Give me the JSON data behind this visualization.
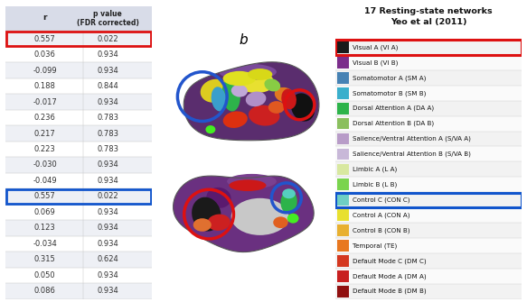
{
  "title_b": "b",
  "legend_title": "17 Resting-state networks\nYeo et al (2011)",
  "table_headers": [
    "r",
    "p value\n(FDR corrected)"
  ],
  "table_rows": [
    [
      "0.557",
      "0.022"
    ],
    [
      "0.036",
      "0.934"
    ],
    [
      "-0.099",
      "0.934"
    ],
    [
      "0.188",
      "0.844"
    ],
    [
      "-0.017",
      "0.934"
    ],
    [
      "0.236",
      "0.783"
    ],
    [
      "0.217",
      "0.783"
    ],
    [
      "0.223",
      "0.783"
    ],
    [
      "-0.030",
      "0.934"
    ],
    [
      "-0.049",
      "0.934"
    ],
    [
      "0.557",
      "0.022"
    ],
    [
      "0.069",
      "0.934"
    ],
    [
      "0.123",
      "0.934"
    ],
    [
      "-0.034",
      "0.934"
    ],
    [
      "0.315",
      "0.624"
    ],
    [
      "0.050",
      "0.934"
    ],
    [
      "0.086",
      "0.934"
    ]
  ],
  "highlight_red_row": 0,
  "highlight_blue_row": 10,
  "network_labels": [
    "Visual A (VI A)",
    "Visual B (VI B)",
    "Somatomotor A (SM A)",
    "Somatomotor B (SM B)",
    "Dorsal Attention A (DA A)",
    "Dorsal Attention B (DA B)",
    "Salience/Ventral Attention A (S/VA A)",
    "Salience/Ventral Attention B (S/VA B)",
    "Limbic A (L A)",
    "Limbic B (L B)",
    "Control C (CON C)",
    "Control A (CON A)",
    "Control B (CON B)",
    "Temporal (TE)",
    "Default Mode C (DM C)",
    "Default Mode A (DM A)",
    "Default Mode B (DM B)"
  ],
  "network_colors": [
    "#1a1a1a",
    "#7b2d8b",
    "#4682b4",
    "#3aafcc",
    "#2db34a",
    "#8abf5e",
    "#b89cc8",
    "#c8b8d8",
    "#d8e8a0",
    "#7ad44e",
    "#6ecfc4",
    "#e8e030",
    "#e8b030",
    "#e87820",
    "#d43820",
    "#c82020",
    "#901010"
  ],
  "highlight_red_network": 0,
  "highlight_blue_network": 10,
  "table_bg_color": "#eef0f5",
  "table_alt_color": "#ffffff",
  "header_bg_color": "#d8dce8"
}
